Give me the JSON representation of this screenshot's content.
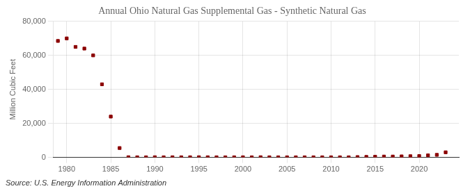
{
  "chart_data": {
    "type": "scatter",
    "title": "Annual Ohio Natural Gas Supplemental Gas - Synthetic Natural Gas",
    "ylabel": "Million Cubic Feet",
    "annotations": [
      "Source: U.S. Energy Information Administration"
    ],
    "x": [
      1979,
      1980,
      1981,
      1982,
      1983,
      1984,
      1985,
      1986,
      1987,
      1988,
      1989,
      1990,
      1991,
      1992,
      1993,
      1994,
      1995,
      1996,
      1997,
      1998,
      1999,
      2000,
      2001,
      2002,
      2003,
      2004,
      2005,
      2006,
      2007,
      2008,
      2009,
      2010,
      2011,
      2012,
      2013,
      2014,
      2015,
      2016,
      2017,
      2018,
      2019,
      2020,
      2021,
      2022,
      2023
    ],
    "values": [
      68500,
      70000,
      65000,
      64000,
      60000,
      43000,
      24000,
      5500,
      100,
      50,
      50,
      100,
      50,
      80,
      60,
      80,
      100,
      80,
      60,
      50,
      60,
      70,
      50,
      100,
      60,
      50,
      50,
      50,
      50,
      50,
      50,
      50,
      50,
      50,
      200,
      300,
      400,
      500,
      500,
      600,
      700,
      800,
      1200,
      1500,
      3000
    ],
    "color": "#8b0000",
    "marker": "square",
    "xlim": [
      1978.5,
      2024.5
    ],
    "xticks": [
      1980,
      1985,
      1990,
      1995,
      2000,
      2005,
      2010,
      2015,
      2020
    ],
    "ylim": [
      0,
      80000
    ],
    "yticks": [
      0,
      {
        "value": 20000,
        "label": "20,000"
      },
      {
        "value": 40000,
        "label": "40,000"
      },
      {
        "value": 60000,
        "label": "60,000"
      },
      {
        "value": 80000,
        "label": "80,000"
      }
    ],
    "grid": true
  }
}
